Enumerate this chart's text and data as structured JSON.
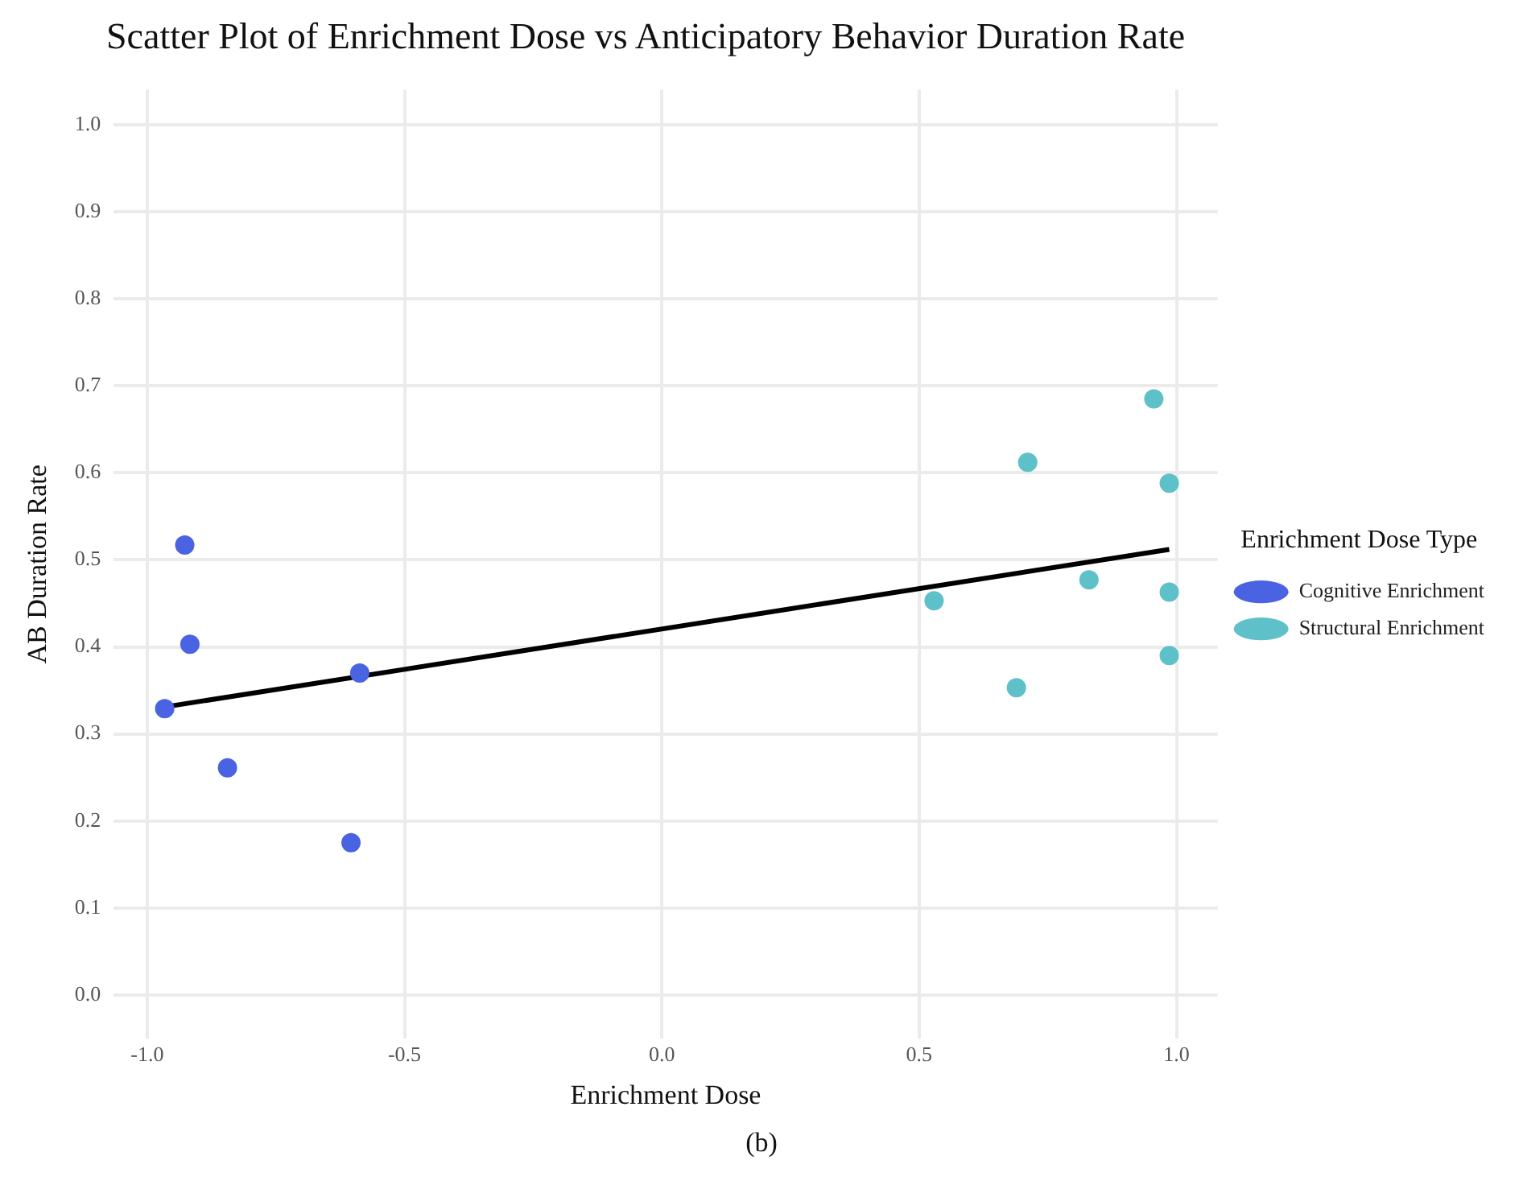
{
  "chart_data": {
    "type": "scatter",
    "title": "Scatter Plot of Enrichment Dose vs Anticipatory Behavior Duration Rate",
    "xlabel": "Enrichment Dose",
    "ylabel": "AB Duration Rate",
    "legend_title": "Enrichment Dose Type",
    "annotations": [
      "(b)"
    ],
    "series": [
      {
        "name": "Cognitive Enrichment",
        "color": "#4a63e3",
        "x": [
          -0.927,
          -0.917,
          -0.966,
          -0.844,
          -0.604,
          -0.587
        ],
        "values": [
          0.517,
          0.403,
          0.329,
          0.261,
          0.175,
          0.37
        ]
      },
      {
        "name": "Structural Enrichment",
        "color": "#5ec0c8",
        "x": [
          0.529,
          0.689,
          0.711,
          0.83,
          0.956,
          0.986,
          0.986,
          0.986
        ],
        "values": [
          0.453,
          0.353,
          0.612,
          0.477,
          0.685,
          0.588,
          0.463,
          0.39
        ]
      },
      {
        "type": "line",
        "color": "#000000",
        "marker": "none",
        "x": [
          -0.966,
          0.986
        ],
        "values": [
          0.331,
          0.512
        ]
      }
    ],
    "xlim": [
      -1.065,
      1.08
    ],
    "xticks": [
      {
        "value": -1,
        "label": "-1.0"
      },
      {
        "value": -0.5,
        "label": "-0.5"
      },
      {
        "value": 0,
        "label": "0.0"
      },
      {
        "value": 0.5,
        "label": "0.5"
      },
      {
        "value": 1,
        "label": "1.0"
      }
    ],
    "ylim": [
      -0.05,
      1.04
    ],
    "yticks": [
      {
        "value": 0,
        "label": "0.0"
      },
      {
        "value": 0.1,
        "label": "0.1"
      },
      {
        "value": 0.2,
        "label": "0.2"
      },
      {
        "value": 0.3,
        "label": "0.3"
      },
      {
        "value": 0.4,
        "label": "0.4"
      },
      {
        "value": 0.5,
        "label": "0.5"
      },
      {
        "value": 0.6,
        "label": "0.6"
      },
      {
        "value": 0.7,
        "label": "0.7"
      },
      {
        "value": 0.8,
        "label": "0.8"
      },
      {
        "value": 0.9,
        "label": "0.9"
      },
      {
        "value": 1,
        "label": "1.0"
      }
    ],
    "grid": true,
    "legend": "right",
    "marker": "circle"
  }
}
